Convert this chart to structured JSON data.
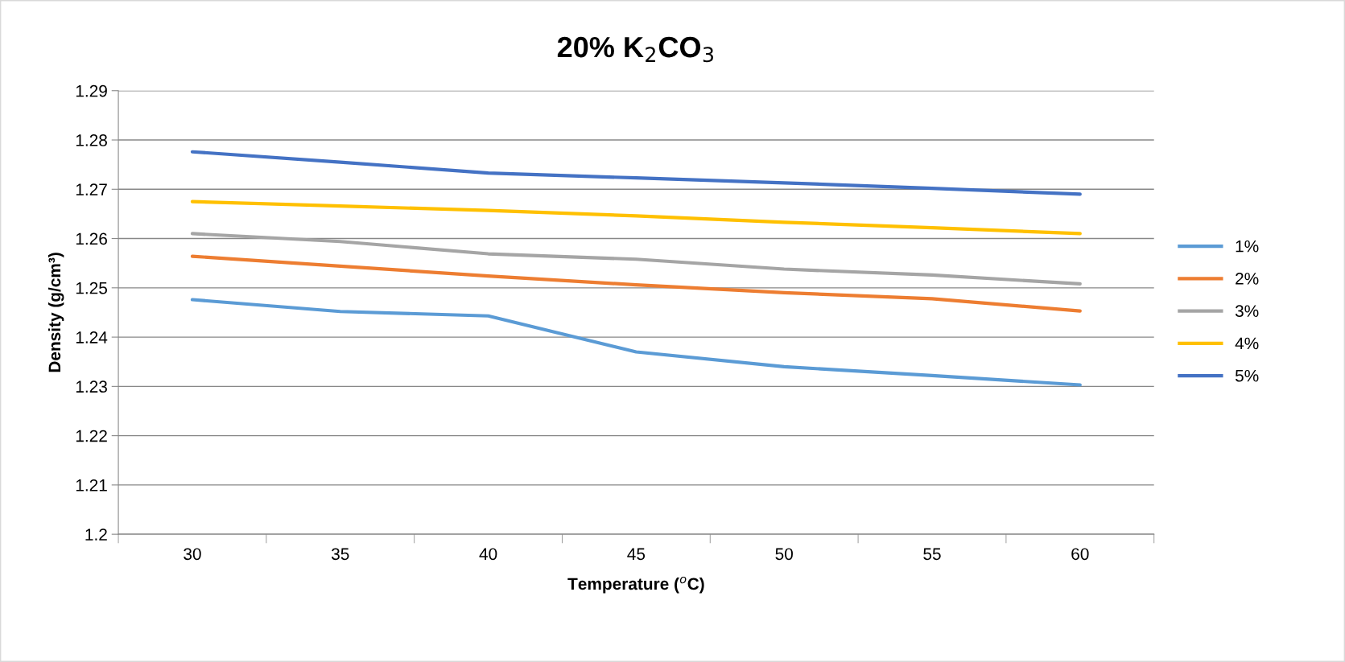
{
  "chart_data": {
    "type": "line",
    "title": "20% K$_{2}$CO$_{3}$",
    "xlabel": "Temperature ($^{o}$C)",
    "ylabel": "Density (g/cm³)",
    "categories": [
      "30",
      "35",
      "40",
      "45",
      "50",
      "55",
      "60"
    ],
    "series": [
      {
        "name": "1%",
        "color": "#5b9bd5",
        "values": [
          1.2476,
          1.2452,
          1.2443,
          1.237,
          1.234,
          1.2322,
          1.2303
        ]
      },
      {
        "name": "2%",
        "color": "#ed7d31",
        "values": [
          1.2564,
          1.2544,
          1.2524,
          1.2506,
          1.249,
          1.2478,
          1.2453
        ]
      },
      {
        "name": "3%",
        "color": "#a5a5a5",
        "values": [
          1.261,
          1.2594,
          1.2569,
          1.2558,
          1.2538,
          1.2526,
          1.2508
        ]
      },
      {
        "name": "4%",
        "color": "#ffc000",
        "values": [
          1.2675,
          1.2666,
          1.2657,
          1.2646,
          1.2633,
          1.2622,
          1.261
        ]
      },
      {
        "name": "5%",
        "color": "#4472c4",
        "values": [
          1.2776,
          1.2755,
          1.2733,
          1.2723,
          1.2713,
          1.2702,
          1.269
        ]
      }
    ],
    "ylim": [
      1.2,
      1.29
    ],
    "yticks": [
      1.2,
      1.21,
      1.22,
      1.23,
      1.24,
      1.25,
      1.26,
      1.27,
      1.28,
      1.29
    ],
    "grid": "y",
    "legend": "right",
    "marker": "none",
    "line_style": "solid"
  }
}
